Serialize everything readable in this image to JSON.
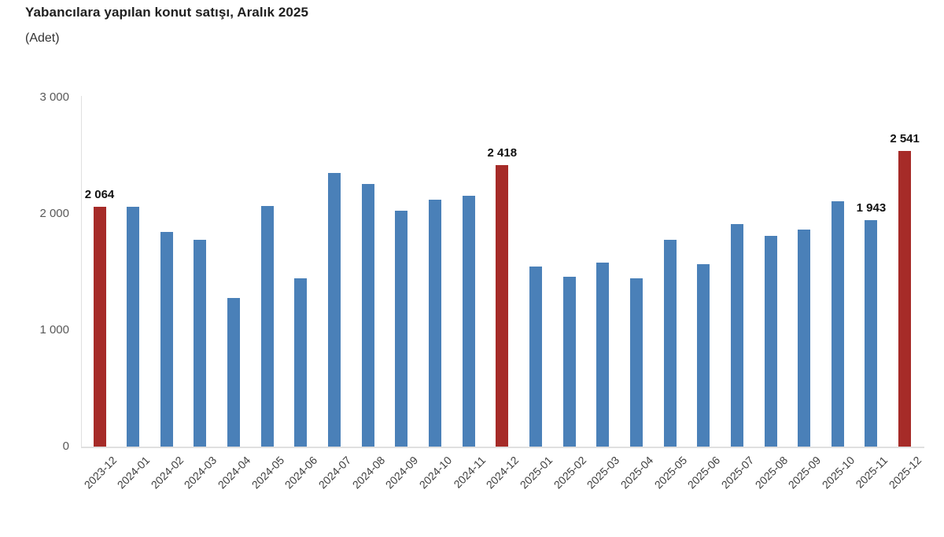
{
  "page": {
    "background": "#ffffff"
  },
  "chart_data": {
    "type": "bar",
    "title": "Yabancılara yapılan konut satışı, Aralık 2025",
    "subtitle": "(Adet)",
    "xlabel": "",
    "ylabel": "",
    "ylim": [
      0,
      3000
    ],
    "grid": false,
    "legend": "none",
    "yticks": [
      {
        "value": 0,
        "label": "0"
      },
      {
        "value": 1000,
        "label": "1 000"
      },
      {
        "value": 2000,
        "label": "2 000"
      },
      {
        "value": 3000,
        "label": "3 000"
      }
    ],
    "points": [
      {
        "month": "2023-12",
        "value": 2064,
        "highlight": true,
        "label": "2 064"
      },
      {
        "month": "2024-01",
        "value": 2060,
        "highlight": false,
        "label": null
      },
      {
        "month": "2024-02",
        "value": 1845,
        "highlight": false,
        "label": null
      },
      {
        "month": "2024-03",
        "value": 1780,
        "highlight": false,
        "label": null
      },
      {
        "month": "2024-04",
        "value": 1275,
        "highlight": false,
        "label": null
      },
      {
        "month": "2024-05",
        "value": 2065,
        "highlight": false,
        "label": null
      },
      {
        "month": "2024-06",
        "value": 1445,
        "highlight": false,
        "label": null
      },
      {
        "month": "2024-07",
        "value": 2350,
        "highlight": false,
        "label": null
      },
      {
        "month": "2024-08",
        "value": 2260,
        "highlight": false,
        "label": null
      },
      {
        "month": "2024-09",
        "value": 2025,
        "highlight": false,
        "label": null
      },
      {
        "month": "2024-10",
        "value": 2125,
        "highlight": false,
        "label": null
      },
      {
        "month": "2024-11",
        "value": 2155,
        "highlight": false,
        "label": null
      },
      {
        "month": "2024-12",
        "value": 2418,
        "highlight": true,
        "label": "2 418"
      },
      {
        "month": "2025-01",
        "value": 1550,
        "highlight": false,
        "label": null
      },
      {
        "month": "2025-02",
        "value": 1460,
        "highlight": false,
        "label": null
      },
      {
        "month": "2025-03",
        "value": 1580,
        "highlight": false,
        "label": null
      },
      {
        "month": "2025-04",
        "value": 1448,
        "highlight": false,
        "label": null
      },
      {
        "month": "2025-05",
        "value": 1775,
        "highlight": false,
        "label": null
      },
      {
        "month": "2025-06",
        "value": 1565,
        "highlight": false,
        "label": null
      },
      {
        "month": "2025-07",
        "value": 1912,
        "highlight": false,
        "label": null
      },
      {
        "month": "2025-08",
        "value": 1810,
        "highlight": false,
        "label": null
      },
      {
        "month": "2025-09",
        "value": 1865,
        "highlight": false,
        "label": null
      },
      {
        "month": "2025-10",
        "value": 2105,
        "highlight": false,
        "label": null
      },
      {
        "month": "2025-11",
        "value": 1943,
        "highlight": false,
        "label": "1 943"
      },
      {
        "month": "2025-12",
        "value": 2541,
        "highlight": true,
        "label": "2 541"
      }
    ],
    "colors": {
      "bar": "#4A80B8",
      "highlight": "#A62B28",
      "axis_line": "#E0E0E0",
      "tick_text": "#595959",
      "xlabel_text": "#3F3F3F",
      "data_label_text": "#111111",
      "title_text": "#1F1F1F",
      "subtitle_text": "#333333"
    }
  }
}
